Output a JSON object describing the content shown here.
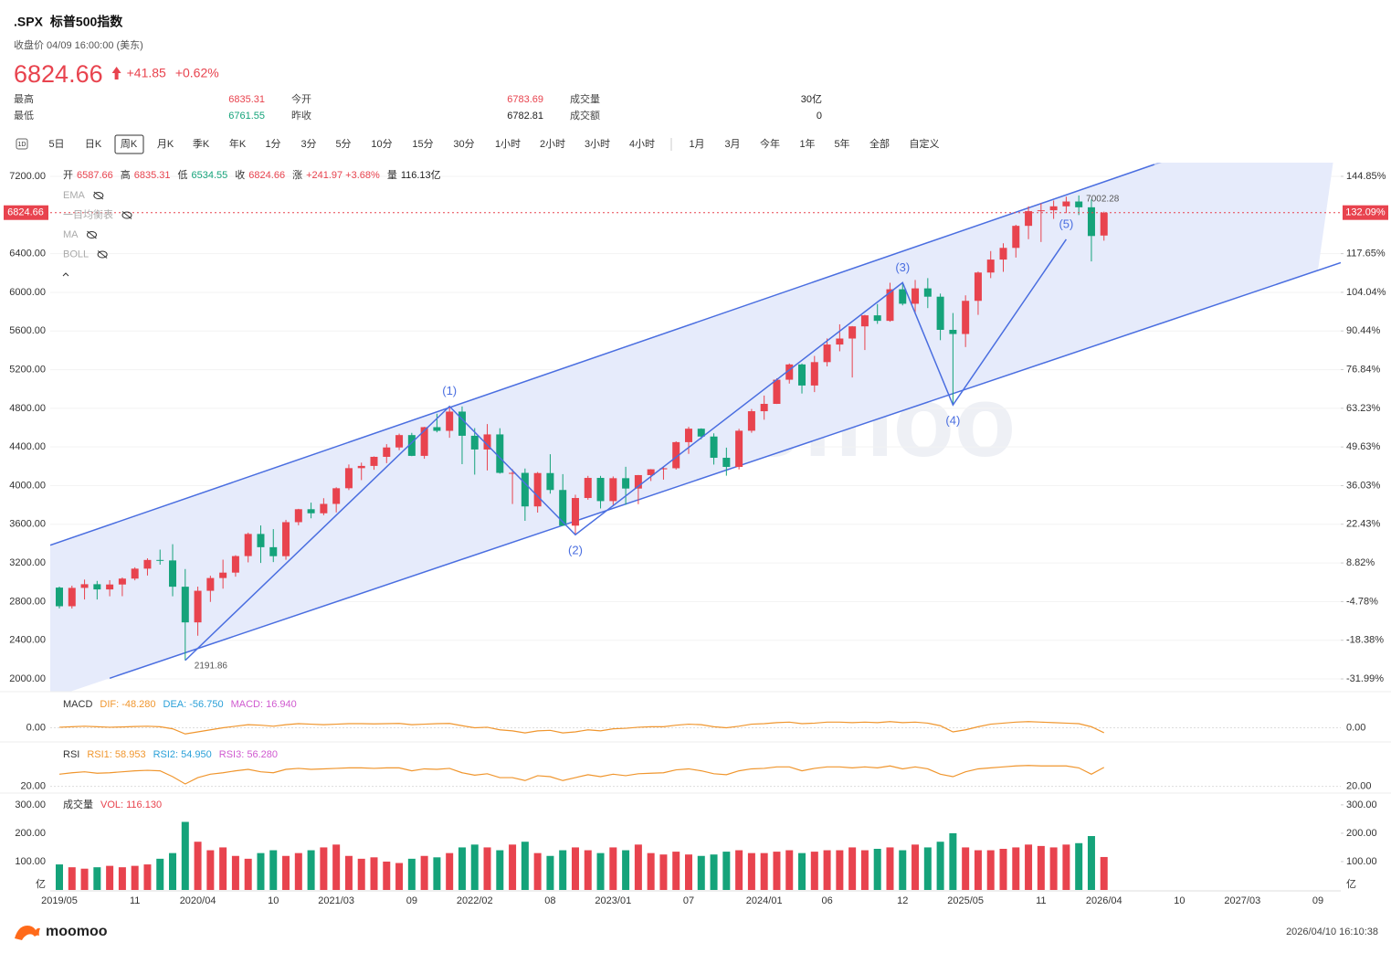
{
  "header": {
    "symbol": ".SPX",
    "name": "标普500指数",
    "time": "收盘价 04/09 16:00:00 (美东)",
    "price": "6824.66",
    "change": "+41.85",
    "change_pct": "+0.62%",
    "stats": [
      [
        {
          "label": "最高",
          "value": "6835.31",
          "color": "#e8434e"
        },
        {
          "label": "今开",
          "value": "6783.69",
          "color": "#e8434e"
        },
        {
          "label": "成交量",
          "value": "30亿",
          "color": "#222"
        }
      ],
      [
        {
          "label": "最低",
          "value": "6761.55",
          "color": "#15a37a"
        },
        {
          "label": "昨收",
          "value": "6782.81",
          "color": "#222"
        },
        {
          "label": "成交额",
          "value": "0",
          "color": "#222"
        }
      ]
    ]
  },
  "tabs": [
    "1D",
    "5日",
    "日K",
    "周K",
    "月K",
    "季K",
    "年K",
    "1分",
    "3分",
    "5分",
    "10分",
    "15分",
    "30分",
    "1小时",
    "2小时",
    "3小时",
    "4小时",
    "1月",
    "3月",
    "今年",
    "1年",
    "5年",
    "全部",
    "自定义"
  ],
  "selected_tab": "周K",
  "chart_data": {
    "type": "candlestick",
    "up_color": "#e8434e",
    "down_color": "#15a37a",
    "grid": true,
    "watermark": "moomoo",
    "ohlc_legend": [
      {
        "label": "开",
        "value": "6587.66",
        "color": "#e8434e"
      },
      {
        "label": "高",
        "value": "6835.31",
        "color": "#e8434e"
      },
      {
        "label": "低",
        "value": "6534.55",
        "color": "#15a37a"
      },
      {
        "label": "收",
        "value": "6824.66",
        "color": "#e8434e"
      },
      {
        "label": "涨",
        "value": "+241.97  +3.68%",
        "color": "#e8434e"
      },
      {
        "label": "量",
        "value": "116.13亿",
        "color": "#222"
      }
    ],
    "indicators": [
      "EMA",
      "一目均衡表",
      "MA",
      "BOLL"
    ],
    "categories": [
      "2019/05",
      null,
      null,
      null,
      null,
      null,
      "11",
      null,
      null,
      null,
      null,
      "2020/04",
      null,
      null,
      null,
      null,
      null,
      "10",
      null,
      null,
      null,
      null,
      "2021/03",
      null,
      null,
      null,
      null,
      null,
      "09",
      null,
      null,
      null,
      null,
      "2022/02",
      null,
      null,
      null,
      null,
      null,
      "08",
      null,
      null,
      null,
      null,
      "2023/01",
      null,
      null,
      null,
      null,
      null,
      "07",
      null,
      null,
      null,
      null,
      null,
      "2024/01",
      null,
      null,
      null,
      null,
      "06",
      null,
      null,
      null,
      null,
      null,
      "12",
      null,
      null,
      null,
      null,
      "2025/05",
      null,
      null,
      null,
      null,
      null,
      "11",
      null,
      null,
      null,
      null,
      "2026/04",
      null,
      null,
      null,
      null,
      null,
      "10",
      null,
      null,
      null,
      null,
      "2027/03",
      null,
      null,
      null,
      null,
      null,
      "09"
    ],
    "open": [
      2945,
      2752,
      2942,
      2980,
      2926,
      2977,
      3038,
      3141,
      3231,
      3226,
      2954,
      2585,
      2912,
      3044,
      3100,
      3271,
      3500,
      3363,
      3270,
      3622,
      3756,
      3714,
      3811,
      3973,
      4181,
      4204,
      4298,
      4395,
      4523,
      4308,
      4605,
      4567,
      4766,
      4516,
      4374,
      4530,
      4132,
      4132,
      3785,
      4130,
      3955,
      3586,
      3872,
      4080,
      3840,
      4077,
      3970,
      4109,
      4169,
      4180,
      4450,
      4589,
      4508,
      4288,
      4194,
      4568,
      4770,
      4846,
      5096,
      5254,
      5036,
      5278,
      5460,
      5522,
      5648,
      5762,
      5705,
      6032,
      5882,
      6041,
      5955,
      5612,
      5569,
      5912,
      6205,
      6339,
      6460,
      6688,
      6840,
      6849,
      6890,
      6940,
      6880,
      6587.66,
      null,
      null,
      null,
      null,
      null,
      null,
      null,
      null,
      null,
      null,
      null,
      null,
      null,
      null,
      null,
      null,
      null
    ],
    "high": [
      2955,
      2965,
      3028,
      3014,
      3022,
      3050,
      3155,
      3248,
      3338,
      3394,
      3137,
      2955,
      3068,
      3234,
      3280,
      3514,
      3588,
      3550,
      3646,
      3760,
      3824,
      3870,
      3983,
      4219,
      4238,
      4302,
      4429,
      4538,
      4546,
      4608,
      4744,
      4808,
      4819,
      4595,
      4637,
      4594,
      4170,
      4177,
      4141,
      4325,
      4119,
      3906,
      4101,
      4101,
      4095,
      4195,
      4110,
      4171,
      4193,
      4459,
      4608,
      4593,
      4541,
      4393,
      4588,
      4793,
      4932,
      5111,
      5264,
      5263,
      5342,
      5523,
      5669,
      5651,
      5768,
      5879,
      6099,
      6100,
      6128,
      6147,
      5987,
      5786,
      5969,
      6215,
      6427,
      6508,
      6699,
      6890,
      6920,
      6950,
      6990,
      7002.28,
      6960,
      6835.31,
      null,
      null,
      null,
      null,
      null,
      null,
      null,
      null,
      null,
      null,
      null,
      null,
      null,
      null,
      null,
      null,
      null
    ],
    "low": [
      2729,
      2728,
      2822,
      2822,
      2855,
      2856,
      3020,
      3070,
      3182,
      2855,
      2191.86,
      2447,
      2797,
      2934,
      3058,
      3206,
      3200,
      3209,
      3233,
      3590,
      3662,
      3694,
      3723,
      3954,
      4057,
      4164,
      4233,
      4367,
      4305,
      4278,
      4551,
      4495,
      4222,
      4114,
      4157,
      4124,
      3810,
      3636,
      3721,
      3917,
      3584,
      3492,
      3854,
      3764,
      3800,
      3802,
      3808,
      4048,
      4062,
      4166,
      4328,
      4480,
      4218,
      4103,
      4168,
      4547,
      4682,
      4845,
      5056,
      4953,
      4968,
      5234,
      5390,
      5119,
      5403,
      5674,
      5696,
      5865,
      5773,
      5837,
      5505,
      4835,
      5434,
      5767,
      6147,
      6212,
      6360,
      6550,
      6521,
      6760,
      6820,
      6800,
      6320,
      6534.55,
      null,
      null,
      null,
      null,
      null,
      null,
      null,
      null,
      null,
      null,
      null,
      null,
      null,
      null,
      null,
      null,
      null
    ],
    "close": [
      2752,
      2942,
      2980,
      2926,
      2977,
      3038,
      3141,
      3231,
      3226,
      2954,
      2585,
      2912,
      3044,
      3100,
      3271,
      3500,
      3363,
      3270,
      3622,
      3756,
      3714,
      3811,
      3973,
      4181,
      4204,
      4298,
      4395,
      4523,
      4308,
      4605,
      4567,
      4766,
      4516,
      4374,
      4530,
      4132,
      4132,
      3785,
      4130,
      3955,
      3586,
      3872,
      4080,
      3840,
      4077,
      3970,
      4109,
      4169,
      4180,
      4450,
      4589,
      4508,
      4288,
      4194,
      4568,
      4770,
      4846,
      5096,
      5254,
      5036,
      5278,
      5460,
      5522,
      5648,
      5762,
      5705,
      6032,
      5882,
      6041,
      5955,
      5612,
      5569,
      5912,
      6205,
      6339,
      6460,
      6688,
      6840,
      6849,
      6890,
      6940,
      6880,
      6583,
      6824.66,
      null,
      null,
      null,
      null,
      null,
      null,
      null,
      null,
      null,
      null,
      null,
      null,
      null,
      null,
      null,
      null,
      null
    ],
    "ylim": [
      1868,
      7342
    ],
    "yticks": [
      {
        "value": 2000,
        "label": "2000.00"
      },
      {
        "value": 2400,
        "label": "2400.00"
      },
      {
        "value": 2800,
        "label": "2800.00"
      },
      {
        "value": 3200,
        "label": "3200.00"
      },
      {
        "value": 3600,
        "label": "3600.00"
      },
      {
        "value": 4000,
        "label": "4000.00"
      },
      {
        "value": 4400,
        "label": "4400.00"
      },
      {
        "value": 4800,
        "label": "4800.00"
      },
      {
        "value": 5200,
        "label": "5200.00"
      },
      {
        "value": 5600,
        "label": "5600.00"
      },
      {
        "value": 6000,
        "label": "6000.00"
      },
      {
        "value": 6400,
        "label": "6400.00"
      },
      {
        "value": 7200,
        "label": "7200.00"
      }
    ],
    "y2lim": [
      -36.48,
      149.67
    ],
    "y2ticks": [
      {
        "value": -31.99,
        "label": "-31.99%"
      },
      {
        "value": -18.38,
        "label": "-18.38%"
      },
      {
        "value": -4.78,
        "label": "-4.78%"
      },
      {
        "value": 8.82,
        "label": "8.82%"
      },
      {
        "value": 22.43,
        "label": "22.43%"
      },
      {
        "value": 36.03,
        "label": "36.03%"
      },
      {
        "value": 49.63,
        "label": "49.63%"
      },
      {
        "value": 63.23,
        "label": "63.23%"
      },
      {
        "value": 76.84,
        "label": "76.84%"
      },
      {
        "value": 90.44,
        "label": "90.44%"
      },
      {
        "value": 104.04,
        "label": "104.04%"
      },
      {
        "value": 117.65,
        "label": "117.65%"
      },
      {
        "value": 144.85,
        "label": "144.85%"
      }
    ],
    "last_price": 6824.66,
    "last_pct": {
      "value": 132.09,
      "label": "132.09%"
    },
    "channel": {
      "color": "#4a6ee0",
      "upper_x": [
        0,
        87,
        100
      ],
      "upper_y": [
        3416,
        7323,
        7907
      ],
      "lower_x": [
        4,
        100
      ],
      "lower_y": [
        2007,
        6227
      ]
    },
    "waves": {
      "x": [
        10,
        31,
        41,
        67,
        71,
        80
      ],
      "y": [
        2191.86,
        4820,
        3492,
        6100,
        4835,
        6548
      ],
      "labels": [
        null,
        "(1)",
        "(2)",
        "(3)",
        "(4)",
        "(5)"
      ]
    },
    "macd": {
      "title": "MACD",
      "labels": [
        {
          "text": "DIF: -48.280",
          "color": "#f0962e"
        },
        {
          "text": "DEA: -56.750",
          "color": "#2aa0d8"
        },
        {
          "text": "MACD: 16.940",
          "color": "#d05ad0"
        }
      ],
      "ylim": [
        -120,
        280
      ],
      "yticks": [
        {
          "value": 0,
          "label": "0.00"
        }
      ],
      "color": "#f0962e",
      "dif": [
        5,
        10,
        15,
        10,
        5,
        8,
        12,
        15,
        10,
        -10,
        -60,
        -40,
        -20,
        0,
        15,
        30,
        25,
        15,
        30,
        40,
        35,
        30,
        35,
        40,
        40,
        38,
        40,
        42,
        30,
        35,
        40,
        42,
        20,
        0,
        5,
        -20,
        -30,
        -50,
        -30,
        -25,
        -50,
        -40,
        -20,
        -30,
        -10,
        -5,
        5,
        10,
        10,
        25,
        35,
        30,
        10,
        0,
        15,
        35,
        40,
        50,
        55,
        40,
        45,
        55,
        55,
        50,
        55,
        50,
        60,
        50,
        55,
        45,
        20,
        -40,
        -20,
        10,
        35,
        45,
        55,
        60,
        55,
        50,
        45,
        40,
        10,
        -48.28,
        null,
        null,
        null,
        null,
        null,
        null,
        null,
        null,
        null,
        null,
        null,
        null,
        null,
        null,
        null,
        null,
        null
      ]
    },
    "rsi": {
      "title": "RSI",
      "labels": [
        {
          "text": "RSI1: 58.953",
          "color": "#f0962e"
        },
        {
          "text": "RSI2: 54.950",
          "color": "#2aa0d8"
        },
        {
          "text": "RSI3: 56.280",
          "color": "#d05ad0"
        }
      ],
      "ylim": [
        10,
        100
      ],
      "yticks": [
        {
          "value": 20,
          "label": "20.00"
        }
      ],
      "color": "#f0962e",
      "rsi1": [
        45,
        48,
        50,
        47,
        48,
        50,
        52,
        53,
        52,
        40,
        25,
        38,
        45,
        48,
        52,
        55,
        50,
        48,
        55,
        57,
        55,
        56,
        57,
        58,
        58,
        57,
        58,
        58,
        52,
        56,
        55,
        57,
        48,
        43,
        46,
        38,
        38,
        32,
        42,
        40,
        32,
        38,
        44,
        40,
        45,
        42,
        46,
        47,
        48,
        54,
        56,
        52,
        46,
        44,
        52,
        56,
        57,
        60,
        60,
        52,
        57,
        60,
        60,
        58,
        60,
        58,
        62,
        56,
        60,
        56,
        45,
        40,
        50,
        56,
        58,
        60,
        62,
        63,
        62,
        62,
        62,
        58,
        45,
        58.953,
        null,
        null,
        null,
        null,
        null,
        null,
        null,
        null,
        null,
        null,
        null,
        null,
        null,
        null,
        null,
        null,
        null
      ]
    },
    "volume": {
      "title": "成交量",
      "label": "VOL: 116.130",
      "unit": "亿",
      "ylim": [
        0,
        335
      ],
      "yticks": [
        {
          "value": 100,
          "label": "100.00"
        },
        {
          "value": 200,
          "label": "200.00"
        },
        {
          "value": 300,
          "label": "300.00"
        }
      ],
      "values": [
        90,
        80,
        75,
        80,
        85,
        80,
        85,
        90,
        110,
        130,
        240,
        170,
        140,
        150,
        120,
        110,
        130,
        140,
        120,
        130,
        140,
        150,
        160,
        120,
        110,
        115,
        100,
        95,
        110,
        120,
        115,
        130,
        150,
        160,
        150,
        140,
        160,
        170,
        130,
        120,
        140,
        150,
        140,
        130,
        150,
        140,
        160,
        130,
        125,
        135,
        125,
        120,
        125,
        135,
        140,
        130,
        130,
        135,
        140,
        130,
        135,
        140,
        140,
        150,
        140,
        145,
        150,
        140,
        160,
        150,
        170,
        200,
        150,
        140,
        140,
        145,
        150,
        160,
        155,
        150,
        160,
        165,
        190,
        116.13,
        null,
        null,
        null,
        null,
        null,
        null,
        null,
        null,
        null,
        null,
        null,
        null,
        null,
        null,
        null,
        null,
        null
      ]
    }
  },
  "footer": {
    "brand": "moomoo",
    "timestamp": "2026/04/10 16:10:38"
  }
}
